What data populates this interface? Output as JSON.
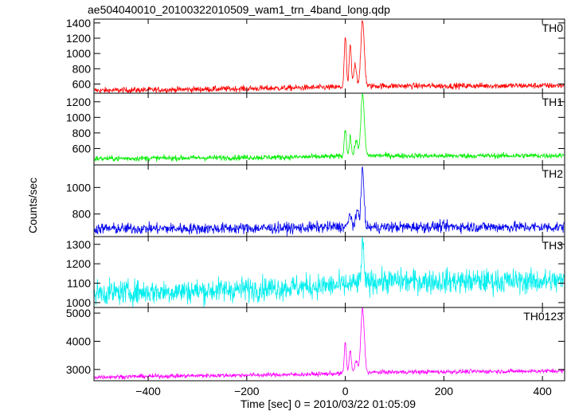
{
  "chart_data": {
    "type": "line",
    "title": "ae504040010_20100322010509_wam1_trn_4band_long.qdp",
    "xlabel": "Time [sec] 0 = 2010/03/22 01:05:09",
    "ylabel": "Counts/sec",
    "xlim": [
      -510,
      445
    ],
    "xticks": [
      -400,
      -200,
      0,
      200,
      400
    ],
    "grid": false,
    "panels": [
      {
        "name": "TH0",
        "color": "#ff0000",
        "ylim": [
          480,
          1450
        ],
        "yticks": [
          600,
          800,
          1000,
          1200,
          1400
        ],
        "baseline": [
          [
            -510,
            515
          ],
          [
            -300,
            530
          ],
          [
            -100,
            550
          ],
          [
            0,
            560
          ],
          [
            60,
            575
          ],
          [
            200,
            575
          ],
          [
            445,
            580
          ]
        ],
        "noise": 28,
        "peaks": [
          {
            "t": 0,
            "value": 1220,
            "width": 3
          },
          {
            "t": 10,
            "value": 1120,
            "width": 3
          },
          {
            "t": 20,
            "value": 860,
            "width": 4
          },
          {
            "t": 35,
            "value": 1420,
            "width": 5
          }
        ]
      },
      {
        "name": "TH1",
        "color": "#00ee00",
        "ylim": [
          390,
          1310
        ],
        "yticks": [
          600,
          800,
          1000,
          1200
        ],
        "baseline": [
          [
            -510,
            470
          ],
          [
            -300,
            480
          ],
          [
            -100,
            490
          ],
          [
            0,
            500
          ],
          [
            60,
            510
          ],
          [
            200,
            505
          ],
          [
            445,
            510
          ]
        ],
        "noise": 25,
        "peaks": [
          {
            "t": 0,
            "value": 850,
            "width": 3
          },
          {
            "t": 10,
            "value": 760,
            "width": 3
          },
          {
            "t": 22,
            "value": 700,
            "width": 4
          },
          {
            "t": 35,
            "value": 1290,
            "width": 5
          }
        ]
      },
      {
        "name": "TH2",
        "color": "#0000ee",
        "ylim": [
          630,
          1170
        ],
        "yticks": [
          800,
          1000
        ],
        "baseline": [
          [
            -510,
            690
          ],
          [
            -300,
            690
          ],
          [
            -100,
            695
          ],
          [
            0,
            705
          ],
          [
            60,
            700
          ],
          [
            200,
            705
          ],
          [
            445,
            700
          ]
        ],
        "noise": 30,
        "peaks": [
          {
            "t": 10,
            "value": 800,
            "width": 4
          },
          {
            "t": 25,
            "value": 830,
            "width": 4
          },
          {
            "t": 35,
            "value": 1140,
            "width": 4
          }
        ]
      },
      {
        "name": "TH3",
        "color": "#00eeee",
        "ylim": [
          975,
          1340
        ],
        "yticks": [
          1000,
          1100,
          1200,
          1300
        ],
        "baseline": [
          [
            -510,
            1050
          ],
          [
            -300,
            1060
          ],
          [
            -100,
            1080
          ],
          [
            0,
            1090
          ],
          [
            60,
            1110
          ],
          [
            200,
            1110
          ],
          [
            445,
            1110
          ]
        ],
        "noise": 45,
        "peaks": [
          {
            "t": 35,
            "value": 1330,
            "width": 3
          }
        ]
      },
      {
        "name": "TH0123",
        "color": "#ff00ff",
        "ylim": [
          2600,
          5200
        ],
        "yticks": [
          3000,
          4000,
          5000
        ],
        "baseline": [
          [
            -510,
            2730
          ],
          [
            -300,
            2780
          ],
          [
            -100,
            2820
          ],
          [
            0,
            2860
          ],
          [
            60,
            2900
          ],
          [
            200,
            2920
          ],
          [
            445,
            2950
          ]
        ],
        "noise": 55,
        "peaks": [
          {
            "t": 0,
            "value": 3950,
            "width": 3
          },
          {
            "t": 10,
            "value": 3700,
            "width": 3
          },
          {
            "t": 22,
            "value": 3300,
            "width": 4
          },
          {
            "t": 35,
            "value": 5150,
            "width": 5
          }
        ]
      }
    ]
  }
}
